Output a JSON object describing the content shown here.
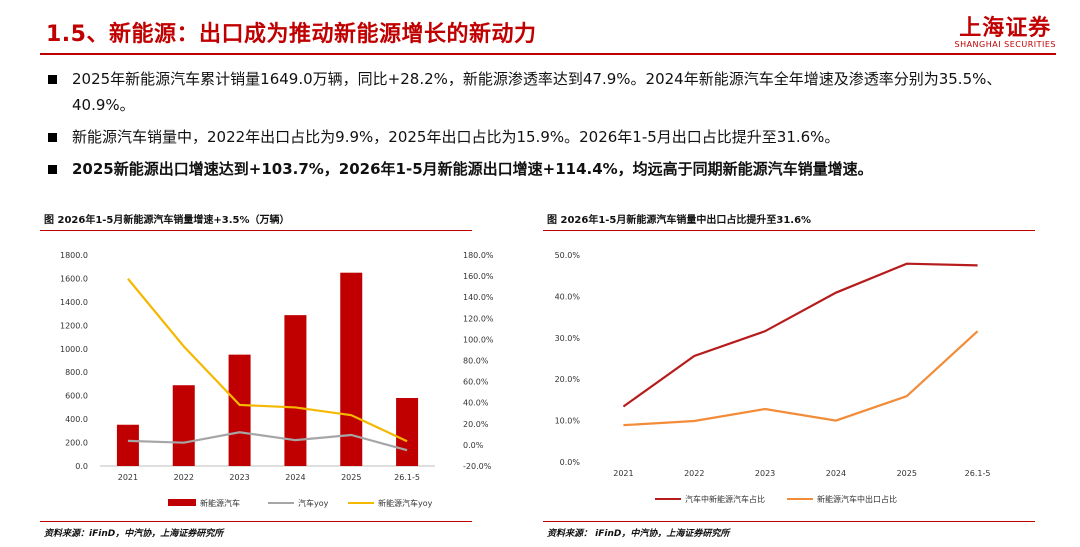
{
  "header": {
    "title": "1.5、新能源：出口成为推动新能源增长的新动力",
    "logo_cn": "上海证券",
    "logo_en": "SHANGHAI SECURITIES"
  },
  "bullets": [
    {
      "text": "2025年新能源汽车累计销量1649.0万辆，同比+28.2%，新能源渗透率达到47.9%。2024年新能源汽车全年增速及渗透率分别为35.5%、40.9%。",
      "bold": false
    },
    {
      "text": "新能源汽车销量中，2022年出口占比为9.9%，2025年出口占比为15.9%。2026年1-5月出口占比提升至31.6%。",
      "bold": false
    },
    {
      "text": "2025新能源出口增速达到+103.7%，2026年1-5月新能源出口增速+114.4%，均远高于同期新能源汽车销量增速。",
      "bold": true
    }
  ],
  "colors": {
    "accent": "#c00000",
    "bar": "#c00000",
    "auto_yoy": "#a6a6a6",
    "nev_yoy": "#f5b800",
    "nev_share": "#b71c1c",
    "export_share": "#f28c38"
  },
  "charts": [
    {
      "title": "图 2026年1-5月新能源汽车销量增速+3.5%（万辆）",
      "source": "资料来源：iFinD，中汽协，上海证券研究所"
    },
    {
      "title": "图 2026年1-5月新能源汽车销量中出口占比提升至31.6%",
      "source": "资料来源： iFinD，中汽协，上海证券研究所"
    }
  ],
  "chart_data": [
    {
      "type": "bar",
      "categories": [
        "2021",
        "2022",
        "2023",
        "2024",
        "2025",
        "26.1-5"
      ],
      "ylim": [
        0,
        1800
      ],
      "y_ticks": [
        "0.0",
        "200.0",
        "400.0",
        "600.0",
        "800.0",
        "1000.0",
        "1200.0",
        "1400.0",
        "1600.0",
        "1800.0"
      ],
      "y2lim": [
        -20,
        180
      ],
      "y2_ticks": [
        "-20.0%",
        "0.0%",
        "20.0%",
        "40.0%",
        "60.0%",
        "80.0%",
        "100.0%",
        "120.0%",
        "140.0%",
        "160.0%",
        "180.0%"
      ],
      "series": [
        {
          "name": "新能源汽车",
          "type": "bar",
          "axis": "left",
          "values": [
            352,
            689,
            950,
            1287,
            1649,
            580
          ]
        },
        {
          "name": "汽车yoy",
          "type": "line",
          "axis": "right",
          "values": [
            3.8,
            2.1,
            12.0,
            4.5,
            9.4,
            -5.0
          ]
        },
        {
          "name": "新能源汽车yoy",
          "type": "line",
          "axis": "right",
          "values": [
            157.5,
            93.4,
            37.9,
            35.5,
            28.2,
            3.5
          ]
        }
      ],
      "legend": "bottom"
    },
    {
      "type": "line",
      "categories": [
        "2021",
        "2022",
        "2023",
        "2024",
        "2025",
        "26.1-5"
      ],
      "ylim": [
        0,
        50
      ],
      "y_ticks": [
        "0.0%",
        "10.0%",
        "20.0%",
        "30.0%",
        "40.0%",
        "50.0%"
      ],
      "series": [
        {
          "name": "汽车中新能源汽车占比",
          "values": [
            13.4,
            25.6,
            31.6,
            40.9,
            47.9,
            47.5
          ]
        },
        {
          "name": "新能源汽车中出口占比",
          "values": [
            8.9,
            9.9,
            12.8,
            10.0,
            15.9,
            31.6
          ]
        }
      ],
      "legend": "bottom"
    }
  ]
}
